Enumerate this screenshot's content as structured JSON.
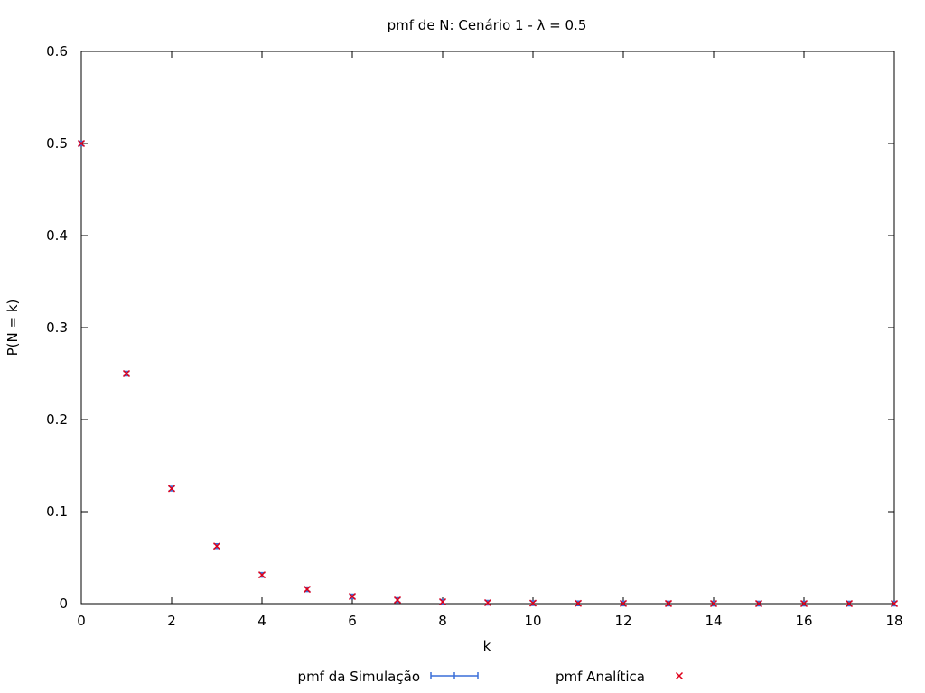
{
  "chart_data": {
    "type": "scatter",
    "title": "pmf de N: Cenário 1 - λ = 0.5",
    "xlabel": "k",
    "ylabel": "P(N = k)",
    "xlim": [
      0,
      18
    ],
    "ylim": [
      0,
      0.6
    ],
    "xticks": [
      0,
      2,
      4,
      6,
      8,
      10,
      12,
      14,
      16,
      18
    ],
    "yticks": [
      0,
      0.1,
      0.2,
      0.3,
      0.4,
      0.5,
      0.6
    ],
    "xtick_labels": [
      "0",
      "2",
      "4",
      "6",
      "8",
      "10",
      "12",
      "14",
      "16",
      "18"
    ],
    "ytick_labels": [
      "0",
      "0.1",
      "0.2",
      "0.3",
      "0.4",
      "0.5",
      "0.6"
    ],
    "grid": false,
    "legend_position": "bottom",
    "series": [
      {
        "name": "pmf da Simulação",
        "marker": "errorbar",
        "color": "#3a6fd8",
        "x": [
          0,
          1,
          2,
          3,
          4,
          5,
          6,
          7,
          8,
          9,
          10,
          11,
          12,
          13,
          14,
          15,
          16,
          17,
          18
        ],
        "values": [
          0.5,
          0.25,
          0.125,
          0.0625,
          0.03125,
          0.015625,
          0.0078125,
          0.00390625,
          0.00195313,
          0.00097656,
          0.00048828,
          0.00024414,
          0.00012207,
          6.1e-05,
          3.05e-05,
          1.53e-05,
          7.6e-06,
          3.8e-06,
          1.9e-06
        ]
      },
      {
        "name": "pmf Analítica",
        "marker": "x",
        "color": "#e0001a",
        "x": [
          0,
          1,
          2,
          3,
          4,
          5,
          6,
          7,
          8,
          9,
          10,
          11,
          12,
          13,
          14,
          15,
          16,
          17,
          18
        ],
        "values": [
          0.5,
          0.25,
          0.125,
          0.0625,
          0.03125,
          0.015625,
          0.0078125,
          0.00390625,
          0.00195313,
          0.00097656,
          0.00048828,
          0.00024414,
          0.00012207,
          6.1e-05,
          3.05e-05,
          1.53e-05,
          7.6e-06,
          3.8e-06,
          1.9e-06
        ]
      }
    ]
  }
}
